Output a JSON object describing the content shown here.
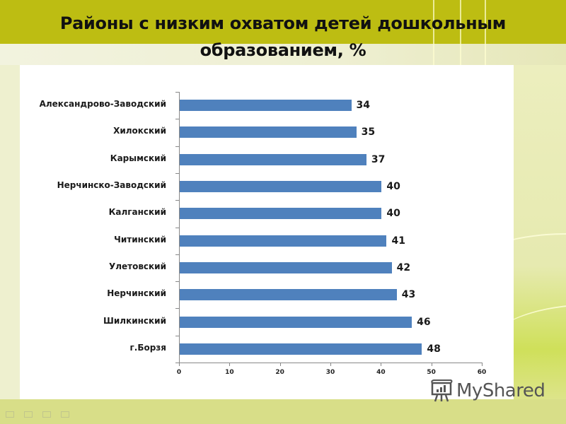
{
  "slide": {
    "title_line1": "Районы с низким охватом детей дошкольным",
    "title_line2": "образованием, %",
    "watermark": "MyShared",
    "colors": {
      "header": "#bdbd12",
      "bar": "#4f81bd",
      "panel": "#ffffff",
      "footer": "#d8de88"
    }
  },
  "chart_data": {
    "type": "bar",
    "orientation": "horizontal",
    "title": "Районы с низким охватом детей дошкольным образованием, %",
    "categories": [
      "Александрово-Заводский",
      "Хилокский",
      "Карымский",
      "Нерчинско-Заводский",
      "Калганский",
      "Читинский",
      "Улетовский",
      "Нерчинский",
      "Шилкинский",
      "г.Борзя"
    ],
    "values": [
      34,
      35,
      37,
      40,
      40,
      41,
      42,
      43,
      46,
      48
    ],
    "data_labels": [
      "34",
      "35",
      "37",
      "40",
      "40",
      "41",
      "42",
      "43",
      "46",
      "48"
    ],
    "xlabel": "",
    "ylabel": "",
    "xlim": [
      0,
      60
    ],
    "x_ticks": [
      "0",
      "10",
      "20",
      "30",
      "40",
      "50",
      "60"
    ],
    "grid": false,
    "legend": "none",
    "bar_color": "#4f81bd"
  }
}
